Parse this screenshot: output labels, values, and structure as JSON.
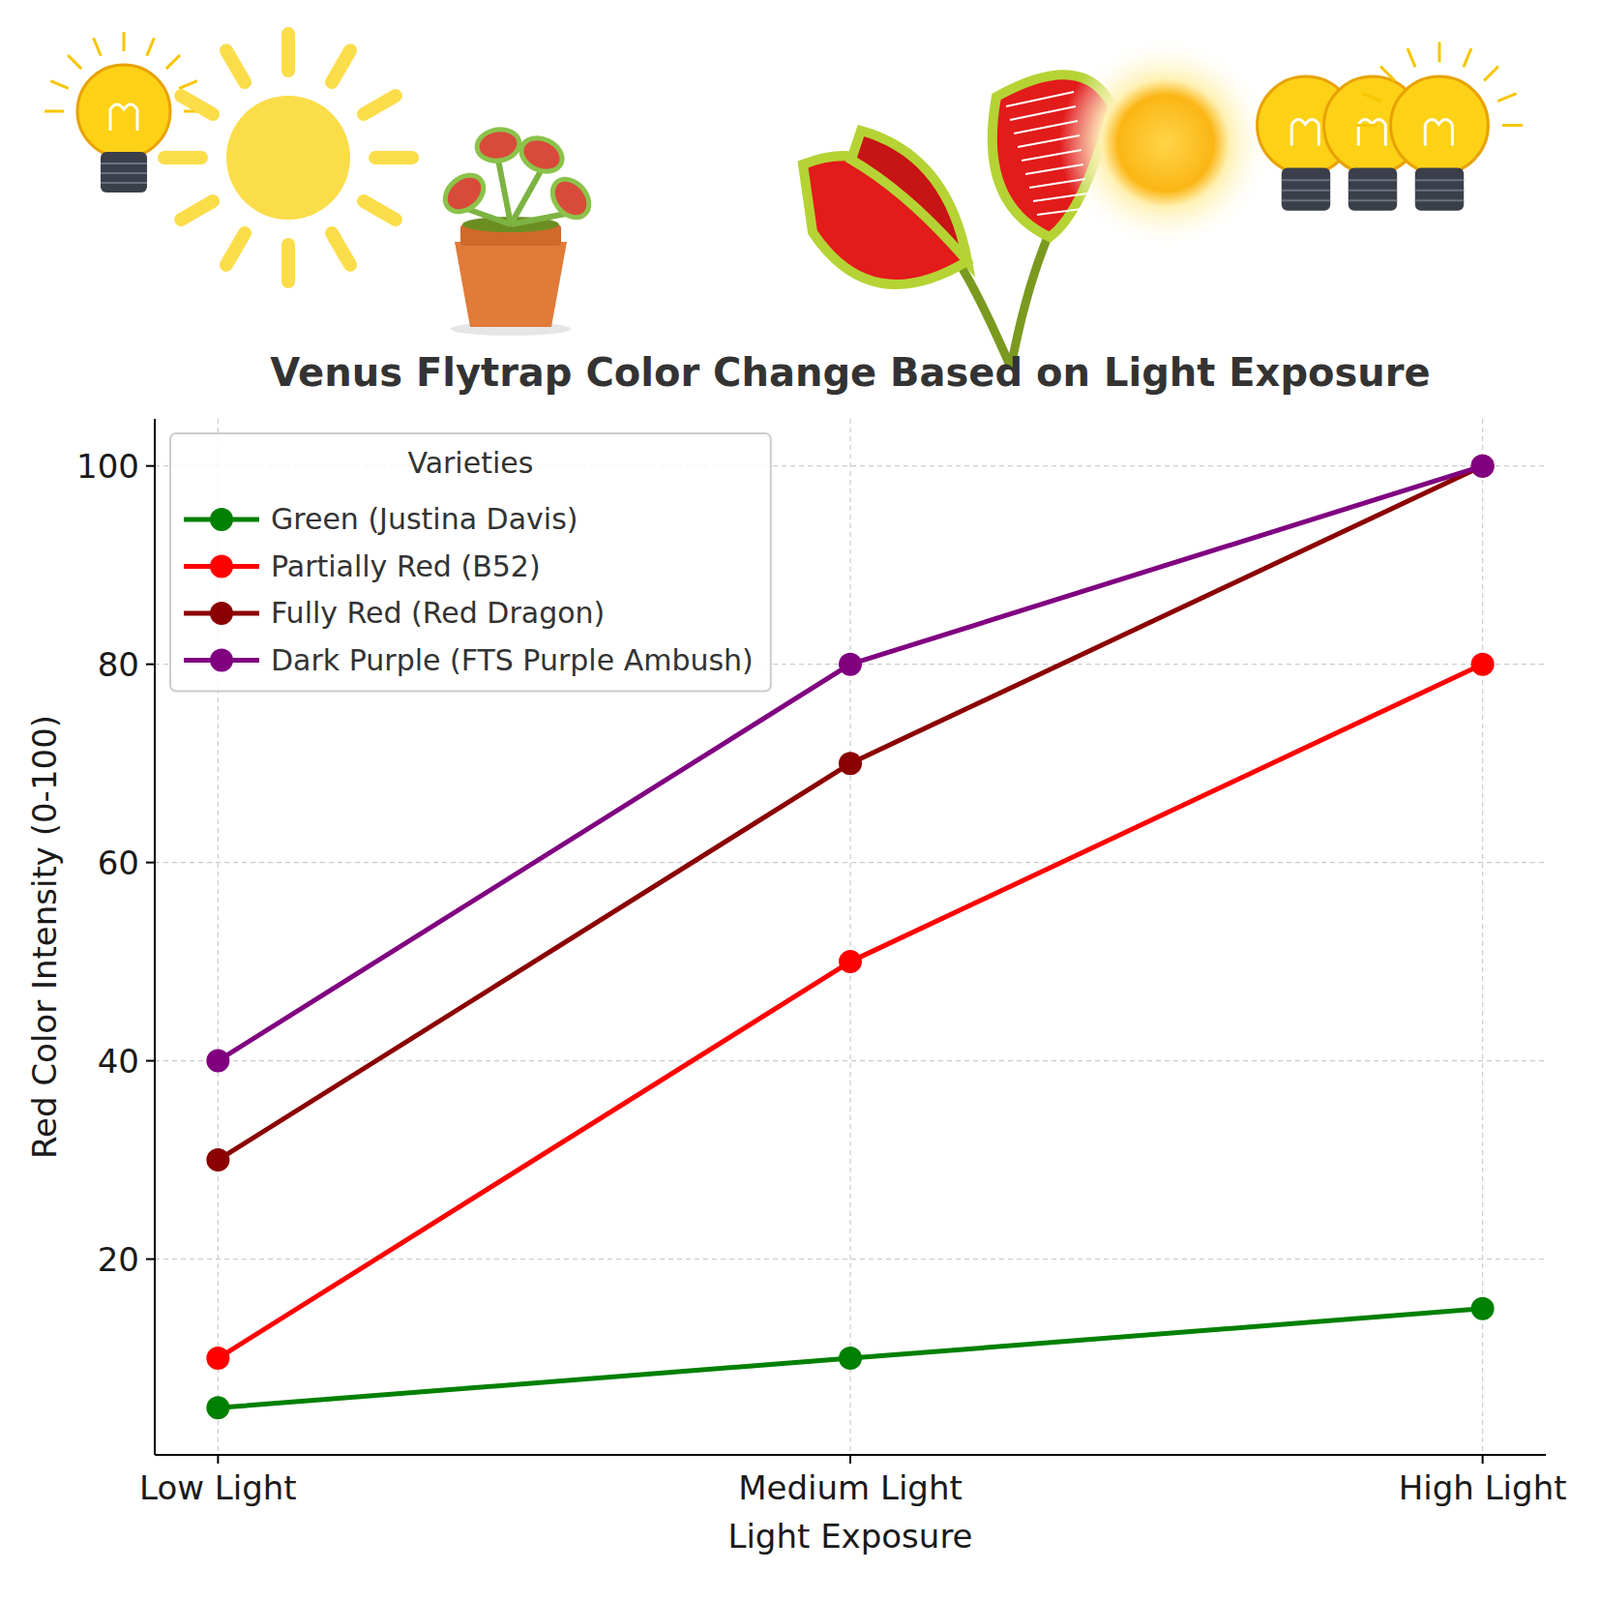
{
  "chart_data": {
    "type": "line",
    "title": "Venus Flytrap Color Change Based on Light Exposure",
    "x_label": "Light Exposure",
    "y_label": "Red Color Intensity (0-100)",
    "legend_title": "Varieties",
    "categories": [
      "Low Light",
      "Medium Light",
      "High Light"
    ],
    "series": [
      {
        "name": "Green (Justina Davis)",
        "color": "#008000",
        "marker": "circle",
        "values": [
          5,
          10,
          15
        ]
      },
      {
        "name": "Partially Red (B52)",
        "color": "#ff0000",
        "marker": "circle",
        "values": [
          10,
          50,
          80
        ]
      },
      {
        "name": "Fully Red (Red Dragon)",
        "color": "#8b0000",
        "marker": "circle",
        "values": [
          30,
          70,
          100
        ]
      },
      {
        "name": "Dark Purple (FTS Purple Ambush)",
        "color": "#800080",
        "marker": "circle",
        "values": [
          40,
          80,
          100
        ]
      }
    ],
    "ylim": [
      0.25,
      104.75
    ],
    "yticks": [
      20,
      40,
      60,
      80,
      100
    ],
    "grid": true,
    "legend": "upper left"
  }
}
